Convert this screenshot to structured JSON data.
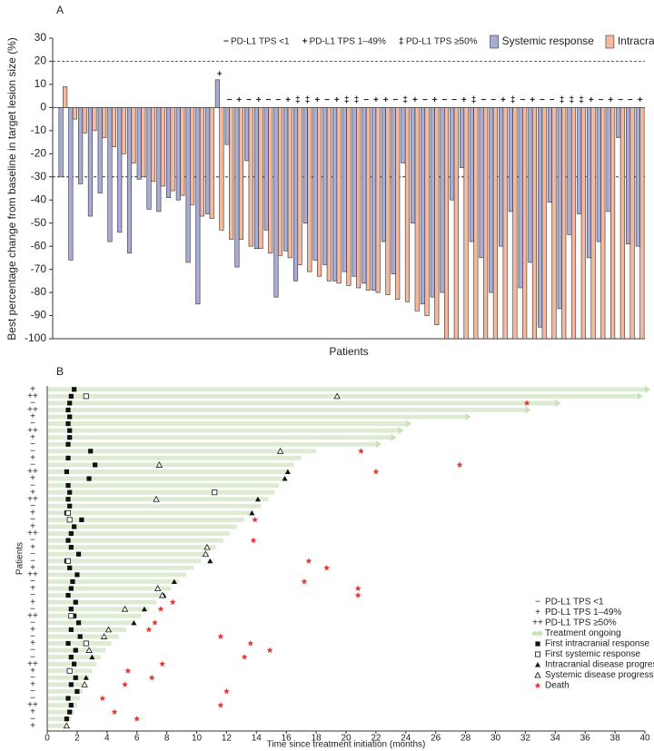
{
  "chart_data": [
    {
      "type": "waterfall",
      "title": "A",
      "ylabel": "Best percentage change from baseline in target lesion size (%)",
      "xlabel": "Patients",
      "ylim": [
        -100,
        30
      ],
      "yticks": [
        -100,
        -90,
        -80,
        -70,
        -60,
        -50,
        -40,
        -30,
        -20,
        -10,
        0,
        10,
        20,
        30
      ],
      "reference_lines": [
        {
          "value": 20,
          "color": "#2e7d4f"
        },
        {
          "value": -30,
          "color": "#333333"
        }
      ],
      "categories": [
        null,
        null,
        null,
        null,
        null,
        null,
        null,
        null,
        null,
        null,
        null,
        null,
        null,
        null,
        null,
        null,
        null,
        null,
        null,
        null,
        null,
        null,
        null,
        null,
        null,
        null,
        null,
        null,
        null,
        null,
        null,
        null,
        null,
        null,
        null,
        null,
        null,
        null,
        null,
        null,
        null,
        null,
        null,
        null,
        null,
        null,
        null,
        null,
        null,
        null,
        null,
        null,
        null,
        null,
        null,
        null,
        null,
        null,
        null,
        null
      ],
      "pdl1_legend": [
        {
          "symbol": "−",
          "label": "PD-L1 TPS <1"
        },
        {
          "symbol": "+",
          "label": "PD-L1 TPS 1–49%"
        },
        {
          "symbol": "‡",
          "label": "PD-L1 TPS ≥50%"
        }
      ],
      "pdl1": [
        null,
        null,
        null,
        null,
        null,
        null,
        null,
        null,
        null,
        null,
        null,
        null,
        null,
        null,
        null,
        null,
        "+",
        "−",
        "+",
        "−",
        "+",
        "−",
        "−",
        "+",
        "‡",
        "‡",
        "+",
        "−",
        "+",
        "‡",
        "‡",
        "−",
        "+",
        "+",
        "−",
        "‡",
        "+",
        "−",
        "+",
        "−",
        "−",
        "+",
        "‡",
        "−",
        "−",
        "+",
        "‡",
        "−",
        "+",
        "−",
        "−",
        "‡",
        "‡",
        "‡",
        "+",
        "−",
        "+",
        "−",
        "−",
        "+"
      ],
      "series": [
        {
          "name": "Systemic response",
          "color": "#a9acd4",
          "values": [
            -30,
            -66,
            -33,
            -47,
            -37,
            -58,
            -54,
            -63,
            -31,
            -44,
            -45,
            -39,
            -40,
            -67,
            -85,
            -46,
            12,
            -16,
            -69,
            -23,
            -61,
            -53,
            -82,
            -62,
            -75,
            -50,
            -66,
            -68,
            -75,
            -71,
            -73,
            -76,
            -79,
            -58,
            -72,
            -24,
            -50,
            -85,
            -82,
            -80,
            -40,
            -26,
            -58,
            -65,
            -80,
            -60,
            -45,
            -78,
            -67,
            -95,
            -41,
            -87,
            -55,
            -46,
            -65,
            -58,
            -45,
            -13,
            -59,
            -60
          ]
        },
        {
          "name": "Intracranial response",
          "color": "#f4b99f",
          "values": [
            9,
            -5,
            -11,
            -10,
            -13,
            -17,
            -20,
            -24,
            -30,
            -32,
            -34,
            -36,
            -38,
            -42,
            -47,
            -48,
            -53,
            -57,
            -57,
            -60,
            -61,
            -63,
            -64,
            -65,
            -68,
            -71,
            -73,
            -75,
            -76,
            -77,
            -78,
            -79,
            -80,
            -81,
            -83,
            -84,
            -88,
            -90,
            -94,
            -100,
            -100,
            -100,
            -100,
            -100,
            -100,
            -100,
            -100,
            -100,
            -100,
            -100,
            -100,
            -100,
            -100,
            -100,
            -100,
            -100,
            -100,
            -100,
            -100,
            -100
          ]
        }
      ]
    },
    {
      "type": "swimmer",
      "title": "B",
      "xlabel": "Time since treatment initiation (months)",
      "ylabel": "Patients",
      "xlim": [
        0,
        40
      ],
      "xticks": [
        0,
        2,
        4,
        6,
        8,
        10,
        12,
        14,
        16,
        18,
        20,
        22,
        24,
        26,
        28,
        30,
        32,
        34,
        36,
        38,
        40
      ],
      "bar_color": "#dcebd2",
      "pdl1_legend": [
        {
          "symbol": "−",
          "label": "PD-L1 TPS <1"
        },
        {
          "symbol": "+",
          "label": "PD-L1 TPS 1–49%"
        },
        {
          "symbol": "++",
          "label": "PD-L1 TPS ≥50%"
        }
      ],
      "ongoing_label": "Treatment ongoing",
      "time": [
        40,
        39.5,
        34,
        32,
        28,
        24,
        23.5,
        23,
        22,
        18,
        17,
        16.5,
        16.2,
        16,
        15.5,
        15.2,
        14.8,
        14.3,
        13.8,
        13.2,
        12.7,
        12.2,
        11.8,
        11.3,
        10.8,
        10.3,
        9.8,
        9.3,
        8.8,
        8.3,
        7.8,
        7.3,
        6.8,
        6.3,
        5.8,
        5.3,
        4.8,
        4.3,
        3.9,
        3.6,
        3.3,
        3.0,
        2.8,
        2.6,
        2.4,
        2.2,
        2.0,
        1.8,
        1.6,
        1.4
      ],
      "ongoing": [
        true,
        true,
        true,
        true,
        true,
        true,
        true,
        true,
        true,
        false,
        false,
        false,
        false,
        false,
        false,
        false,
        false,
        false,
        false,
        false,
        false,
        false,
        false,
        false,
        false,
        false,
        false,
        false,
        false,
        false,
        false,
        false,
        false,
        false,
        false,
        false,
        false,
        false,
        false,
        false,
        false,
        false,
        false,
        false,
        false,
        false,
        false,
        false,
        false,
        false
      ],
      "pdl1": [
        "+",
        "++",
        "−",
        "++",
        "+",
        "−",
        "++",
        "+",
        "−",
        "−",
        "+",
        "−",
        "++",
        "+",
        "−",
        "+",
        "++",
        "−",
        "+",
        "−",
        "+",
        "++",
        "−",
        "+",
        "−",
        "−",
        "+",
        "++",
        "−",
        "+",
        "−",
        "+",
        "−",
        "++",
        "−",
        "+",
        "−",
        "+",
        "−",
        "−",
        "++",
        "+",
        "−",
        "+",
        "−",
        "−",
        "++",
        "+",
        "−",
        "+"
      ],
      "events": [
        {
          "name": "First intracranial response",
          "shape": "square",
          "values": [
            1.8,
            1.6,
            1.5,
            1.4,
            1.5,
            1.4,
            1.5,
            1.5,
            1.4,
            2.9,
            1.4,
            3.2,
            1.3,
            2.8,
            1.4,
            1.5,
            1.4,
            1.5,
            1.3,
            2.3,
            1.8,
            1.6,
            1.4,
            1.6,
            2.1,
            1.3,
            1.5,
            2.0,
            1.7,
            1.6,
            1.4,
            1.9,
            1.6,
            1.8,
            2.1,
            1.6,
            2.2,
            1.4,
            1.9,
            1.6,
            1.8,
            1.5,
            1.9,
            1.6,
            2.0,
            1.4,
            1.6,
            1.5,
            1.3,
            null
          ]
        },
        {
          "name": "First systemic response",
          "shape": "open-square",
          "values": [
            null,
            2.6,
            null,
            null,
            null,
            null,
            null,
            null,
            null,
            null,
            null,
            null,
            null,
            null,
            null,
            11.2,
            null,
            null,
            1.4,
            1.5,
            null,
            null,
            null,
            null,
            null,
            1.4,
            null,
            null,
            null,
            null,
            null,
            null,
            null,
            1.6,
            null,
            null,
            null,
            2.6,
            null,
            null,
            null,
            1.5,
            null,
            null,
            null,
            null,
            null,
            null,
            null,
            null
          ]
        },
        {
          "name": "Intracranial disease progression",
          "shape": "triangle",
          "values": [
            null,
            null,
            null,
            null,
            null,
            null,
            null,
            null,
            null,
            null,
            null,
            null,
            16.1,
            15.9,
            null,
            null,
            14.1,
            null,
            13.7,
            null,
            null,
            null,
            null,
            null,
            null,
            10.9,
            null,
            null,
            8.5,
            null,
            7.8,
            null,
            6.5,
            null,
            5.8,
            null,
            null,
            null,
            null,
            3.0,
            null,
            null,
            2.6,
            null,
            null,
            null,
            null,
            null,
            null,
            null
          ]
        },
        {
          "name": "Systemic disease progression",
          "shape": "open-triangle",
          "values": [
            null,
            19.4,
            null,
            null,
            null,
            null,
            null,
            null,
            null,
            15.6,
            null,
            7.5,
            null,
            null,
            null,
            null,
            7.3,
            null,
            null,
            null,
            null,
            null,
            null,
            10.7,
            10.6,
            null,
            null,
            null,
            null,
            7.4,
            7.7,
            null,
            5.2,
            null,
            null,
            4.1,
            3.8,
            null,
            2.8,
            null,
            null,
            null,
            null,
            2.5,
            null,
            null,
            null,
            null,
            null,
            1.3
          ]
        },
        {
          "name": "Death",
          "shape": "star",
          "color": "#e53935",
          "values": [
            null,
            null,
            32.1,
            null,
            null,
            null,
            null,
            null,
            null,
            21,
            null,
            27.6,
            22,
            null,
            null,
            null,
            null,
            null,
            null,
            13.9,
            null,
            null,
            13.8,
            null,
            null,
            17.5,
            18.7,
            null,
            17.2,
            20.8,
            20.8,
            8.4,
            7.6,
            null,
            7.2,
            6.8,
            11.6,
            13.6,
            14.9,
            13.2,
            7.7,
            5.4,
            7.0,
            5.2,
            12.0,
            3.7,
            11.6,
            4.5,
            6.0,
            null
          ]
        }
      ]
    }
  ]
}
